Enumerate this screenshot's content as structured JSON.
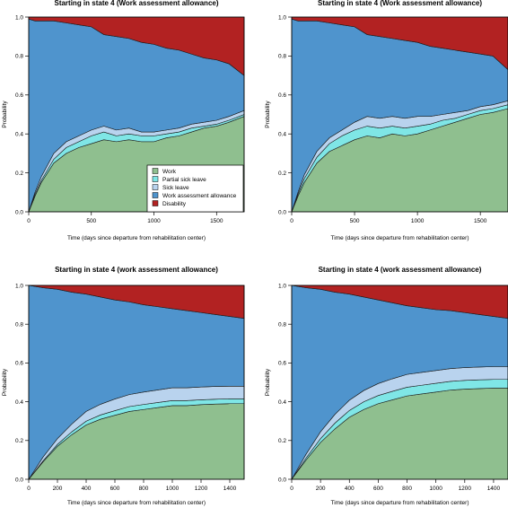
{
  "legend_labels": [
    "Work",
    "Partial sick leave",
    "Sick leave",
    "Work assessment allowance",
    "Disability"
  ],
  "colors": {
    "work": "#8fbf8f",
    "partial": "#7fe6e6",
    "sick": "#b9d3ee",
    "waa": "#4f94cd",
    "disability": "#b22222"
  },
  "chart_data": [
    {
      "type": "area",
      "title": "Starting in state 4 (Work assessment allowance)",
      "xlabel": "Time (days since departure from rehabilitation center)",
      "ylabel": "Probability",
      "xlim": [
        0,
        1720
      ],
      "ylim": [
        0,
        1
      ],
      "xticks": [
        0,
        500,
        1000,
        1500
      ],
      "yticks": [
        0.0,
        0.2,
        0.4,
        0.6,
        0.8,
        1.0
      ],
      "legend": "bottom-right",
      "x": [
        0,
        50,
        100,
        200,
        300,
        400,
        500,
        600,
        700,
        800,
        900,
        1000,
        1100,
        1200,
        1300,
        1400,
        1500,
        1600,
        1720
      ],
      "series": [
        {
          "name": "Work",
          "values": [
            0,
            0.08,
            0.15,
            0.25,
            0.3,
            0.33,
            0.35,
            0.37,
            0.36,
            0.37,
            0.36,
            0.36,
            0.38,
            0.39,
            0.41,
            0.43,
            0.44,
            0.46,
            0.49
          ]
        },
        {
          "name": "Partial sick leave",
          "values": [
            0,
            0.01,
            0.01,
            0.02,
            0.03,
            0.03,
            0.04,
            0.04,
            0.03,
            0.03,
            0.03,
            0.03,
            0.02,
            0.02,
            0.02,
            0.01,
            0.01,
            0.01,
            0.01
          ]
        },
        {
          "name": "Sick leave",
          "values": [
            0,
            0.01,
            0.02,
            0.03,
            0.03,
            0.03,
            0.03,
            0.03,
            0.03,
            0.03,
            0.02,
            0.02,
            0.02,
            0.02,
            0.02,
            0.02,
            0.02,
            0.02,
            0.02
          ]
        },
        {
          "name": "Work assessment allowance",
          "values": [
            0.99,
            0.88,
            0.8,
            0.68,
            0.61,
            0.57,
            0.53,
            0.47,
            0.48,
            0.46,
            0.46,
            0.45,
            0.42,
            0.4,
            0.36,
            0.33,
            0.31,
            0.27,
            0.18
          ]
        },
        {
          "name": "Disability",
          "values": [
            0.01,
            0.02,
            0.02,
            0.02,
            0.03,
            0.04,
            0.05,
            0.09,
            0.1,
            0.11,
            0.13,
            0.14,
            0.16,
            0.17,
            0.19,
            0.21,
            0.22,
            0.24,
            0.3
          ]
        }
      ]
    },
    {
      "type": "area",
      "title": "Starting in state 4 (Work assessment allowance)",
      "xlabel": "Time (days since departure from rehabilitation center)",
      "ylabel": "Probability",
      "xlim": [
        0,
        1720
      ],
      "ylim": [
        0,
        1
      ],
      "xticks": [
        0,
        500,
        1000,
        1500
      ],
      "yticks": [
        0.0,
        0.2,
        0.4,
        0.6,
        0.8,
        1.0
      ],
      "x": [
        0,
        50,
        100,
        200,
        300,
        400,
        500,
        600,
        700,
        800,
        900,
        1000,
        1100,
        1200,
        1300,
        1400,
        1500,
        1600,
        1720
      ],
      "series": [
        {
          "name": "Work",
          "values": [
            0,
            0.08,
            0.15,
            0.25,
            0.31,
            0.34,
            0.37,
            0.39,
            0.38,
            0.4,
            0.39,
            0.4,
            0.42,
            0.44,
            0.46,
            0.48,
            0.5,
            0.51,
            0.53
          ]
        },
        {
          "name": "Partial sick leave",
          "values": [
            0,
            0.01,
            0.02,
            0.03,
            0.04,
            0.05,
            0.05,
            0.05,
            0.05,
            0.04,
            0.04,
            0.04,
            0.03,
            0.03,
            0.02,
            0.02,
            0.02,
            0.02,
            0.02
          ]
        },
        {
          "name": "Sick leave",
          "values": [
            0,
            0.01,
            0.02,
            0.03,
            0.03,
            0.03,
            0.04,
            0.05,
            0.05,
            0.05,
            0.05,
            0.05,
            0.04,
            0.03,
            0.03,
            0.02,
            0.02,
            0.02,
            0.02
          ]
        },
        {
          "name": "Work assessment allowance",
          "values": [
            0.99,
            0.88,
            0.79,
            0.67,
            0.59,
            0.54,
            0.49,
            0.42,
            0.42,
            0.4,
            0.4,
            0.38,
            0.36,
            0.34,
            0.32,
            0.3,
            0.27,
            0.25,
            0.16
          ]
        },
        {
          "name": "Disability",
          "values": [
            0.01,
            0.02,
            0.02,
            0.02,
            0.03,
            0.04,
            0.05,
            0.09,
            0.1,
            0.11,
            0.12,
            0.13,
            0.15,
            0.16,
            0.17,
            0.18,
            0.19,
            0.2,
            0.27
          ]
        }
      ]
    },
    {
      "type": "area",
      "title": "Starting in state 4 (work assessment allowance)",
      "xlabel": "Time (days since departure from rehabilitation center)",
      "ylabel": "Probability",
      "xlim": [
        0,
        1500
      ],
      "ylim": [
        0,
        1
      ],
      "xticks": [
        0,
        200,
        400,
        600,
        800,
        1000,
        1200,
        1400
      ],
      "yticks": [
        0.0,
        0.2,
        0.4,
        0.6,
        0.8,
        1.0
      ],
      "x": [
        0,
        100,
        200,
        300,
        400,
        500,
        600,
        700,
        800,
        900,
        1000,
        1100,
        1200,
        1300,
        1400,
        1500
      ],
      "series": [
        {
          "name": "Work",
          "values": [
            0,
            0.09,
            0.17,
            0.23,
            0.28,
            0.31,
            0.33,
            0.35,
            0.36,
            0.37,
            0.38,
            0.38,
            0.385,
            0.388,
            0.39,
            0.39
          ]
        },
        {
          "name": "Partial sick leave",
          "values": [
            0,
            0.005,
            0.01,
            0.015,
            0.02,
            0.022,
            0.024,
            0.025,
            0.026,
            0.026,
            0.026,
            0.026,
            0.025,
            0.025,
            0.025,
            0.025
          ]
        },
        {
          "name": "Sick leave",
          "values": [
            0,
            0.02,
            0.03,
            0.04,
            0.05,
            0.055,
            0.06,
            0.062,
            0.064,
            0.065,
            0.066,
            0.066,
            0.066,
            0.066,
            0.065,
            0.065
          ]
        },
        {
          "name": "Work assessment allowance",
          "values": [
            1.0,
            0.873,
            0.77,
            0.68,
            0.605,
            0.553,
            0.511,
            0.478,
            0.45,
            0.429,
            0.408,
            0.398,
            0.384,
            0.371,
            0.36,
            0.35
          ]
        },
        {
          "name": "Disability",
          "values": [
            0,
            0.012,
            0.02,
            0.035,
            0.045,
            0.06,
            0.075,
            0.085,
            0.1,
            0.11,
            0.12,
            0.13,
            0.14,
            0.15,
            0.16,
            0.17
          ]
        }
      ]
    },
    {
      "type": "area",
      "title": "Starting in state 4 (work assessment allowance)",
      "xlabel": "Time (days since departure from rehabilitation center)",
      "ylabel": "Probability",
      "xlim": [
        0,
        1500
      ],
      "ylim": [
        0,
        1
      ],
      "xticks": [
        0,
        200,
        400,
        600,
        800,
        1000,
        1200,
        1400
      ],
      "yticks": [
        0.0,
        0.2,
        0.4,
        0.6,
        0.8,
        1.0
      ],
      "x": [
        0,
        100,
        200,
        300,
        400,
        500,
        600,
        700,
        800,
        900,
        1000,
        1100,
        1200,
        1300,
        1400,
        1500
      ],
      "series": [
        {
          "name": "Work",
          "values": [
            0,
            0.1,
            0.19,
            0.26,
            0.32,
            0.36,
            0.39,
            0.41,
            0.43,
            0.44,
            0.45,
            0.46,
            0.465,
            0.468,
            0.47,
            0.47
          ]
        },
        {
          "name": "Partial sick leave",
          "values": [
            0,
            0.01,
            0.02,
            0.03,
            0.035,
            0.04,
            0.042,
            0.044,
            0.045,
            0.045,
            0.045,
            0.045,
            0.045,
            0.045,
            0.045,
            0.045
          ]
        },
        {
          "name": "Sick leave",
          "values": [
            0,
            0.02,
            0.035,
            0.045,
            0.053,
            0.058,
            0.062,
            0.065,
            0.066,
            0.066,
            0.066,
            0.066,
            0.066,
            0.066,
            0.066,
            0.066
          ]
        },
        {
          "name": "Work assessment allowance",
          "values": [
            1.0,
            0.858,
            0.735,
            0.63,
            0.547,
            0.482,
            0.431,
            0.391,
            0.354,
            0.334,
            0.314,
            0.299,
            0.284,
            0.271,
            0.259,
            0.249
          ]
        },
        {
          "name": "Disability",
          "values": [
            0,
            0.012,
            0.02,
            0.035,
            0.045,
            0.06,
            0.075,
            0.09,
            0.105,
            0.115,
            0.125,
            0.13,
            0.14,
            0.15,
            0.16,
            0.17
          ]
        }
      ]
    }
  ]
}
